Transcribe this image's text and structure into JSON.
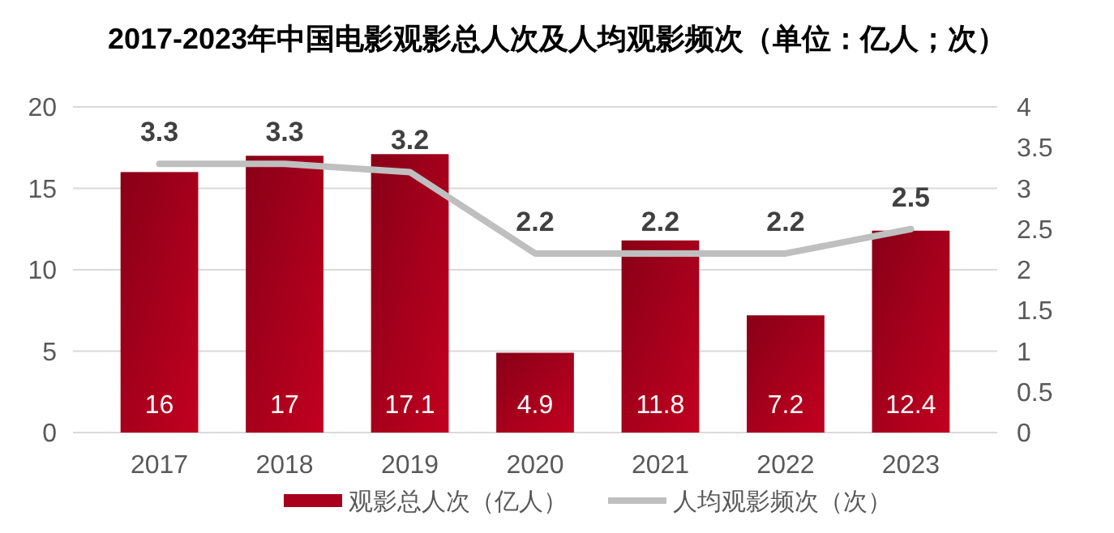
{
  "chart_data": {
    "type": "bar",
    "title": "2017-2023年中国电影观影总人次及人均观影频次（单位：亿人；次）",
    "categories": [
      "2017",
      "2018",
      "2019",
      "2020",
      "2021",
      "2022",
      "2023"
    ],
    "series": [
      {
        "name": "观影总人次（亿人）",
        "color": "#a8001c",
        "values": [
          16,
          17,
          17.1,
          4.9,
          11.8,
          7.2,
          12.4
        ]
      },
      {
        "name": "人均观影频次（次）",
        "type": "line",
        "axis": "y2",
        "color": "#bfbfbf",
        "values": [
          3.3,
          3.3,
          3.2,
          2.2,
          2.2,
          2.2,
          2.5
        ]
      }
    ],
    "ylim": [
      0,
      20
    ],
    "yticks": [
      0,
      5,
      10,
      15,
      20
    ],
    "y2lim": [
      0,
      4
    ],
    "y2ticks": [
      0,
      0.5,
      1,
      1.5,
      2,
      2.5,
      3,
      3.5,
      4
    ],
    "grid": "y",
    "legend": "bottom",
    "data_labels": true,
    "marker": "none",
    "line_style": "solid"
  }
}
